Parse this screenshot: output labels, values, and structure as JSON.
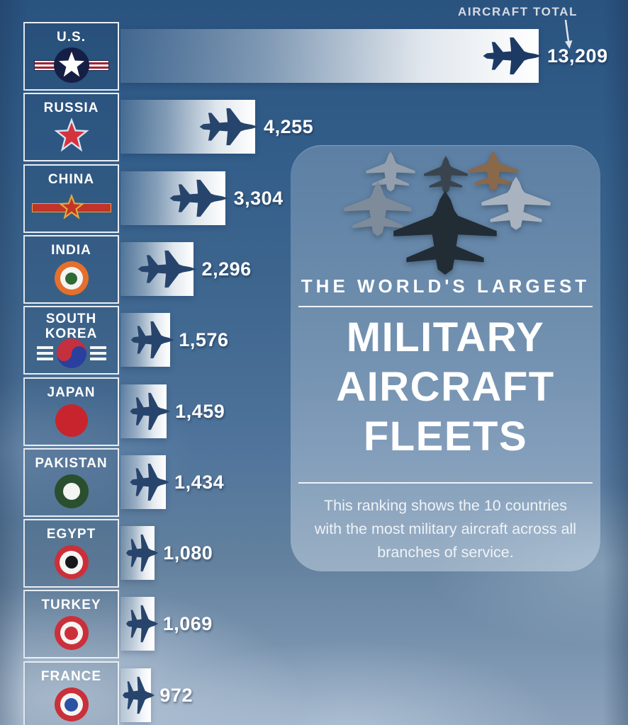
{
  "header": {
    "aircraft_total_label": "AIRCRAFT TOTAL"
  },
  "panel": {
    "kicker": "THE WORLD'S LARGEST",
    "title_line1": "MILITARY",
    "title_line2": "AIRCRAFT",
    "title_line3": "FLEETS",
    "description": "This ranking shows the 10 countries with the most military aircraft across all branches of service."
  },
  "chart_data": {
    "type": "bar",
    "orientation": "horizontal",
    "title": "The World's Largest Military Aircraft Fleets",
    "categories": [
      "U.S.",
      "RUSSIA",
      "CHINA",
      "INDIA",
      "SOUTH KOREA",
      "JAPAN",
      "PAKISTAN",
      "EGYPT",
      "TURKEY",
      "FRANCE"
    ],
    "values": [
      13209,
      4255,
      3304,
      2296,
      1576,
      1459,
      1434,
      1080,
      1069,
      972
    ],
    "value_labels": [
      "13,209",
      "4,255",
      "3,304",
      "2,296",
      "1,576",
      "1,459",
      "1,434",
      "1,080",
      "1,069",
      "972"
    ],
    "xlabel": "AIRCRAFT TOTAL",
    "xlim": [
      0,
      13209
    ],
    "grid": false,
    "legend": "none"
  },
  "rows": [
    {
      "country": "U.S.",
      "value": "13,209",
      "flag_icon": "usaf-star-and-bars-roundel"
    },
    {
      "country": "RUSSIA",
      "value": "4,255",
      "flag_icon": "russia-red-star"
    },
    {
      "country": "CHINA",
      "value": "3,304",
      "flag_icon": "plaaf-star-and-bar"
    },
    {
      "country": "INDIA",
      "value": "2,296",
      "flag_icon": "india-tricolor-roundel"
    },
    {
      "country": "SOUTH KOREA",
      "value": "1,576",
      "flag_icon": "south-korea-taegeuk"
    },
    {
      "country": "JAPAN",
      "value": "1,459",
      "flag_icon": "japan-hinomaru"
    },
    {
      "country": "PAKISTAN",
      "value": "1,434",
      "flag_icon": "pakistan-roundel"
    },
    {
      "country": "EGYPT",
      "value": "1,080",
      "flag_icon": "egypt-roundel"
    },
    {
      "country": "TURKEY",
      "value": "1,069",
      "flag_icon": "turkey-roundel"
    },
    {
      "country": "FRANCE",
      "value": "972",
      "flag_icon": "france-roundel"
    }
  ],
  "colors": {
    "sky_top": "#2a5380",
    "sky_bottom": "#8ca2bb",
    "bar_white": "#ffffff",
    "plane_silhouette": "#27456c",
    "panel_tint": "rgba(216,229,241,0.32)"
  }
}
